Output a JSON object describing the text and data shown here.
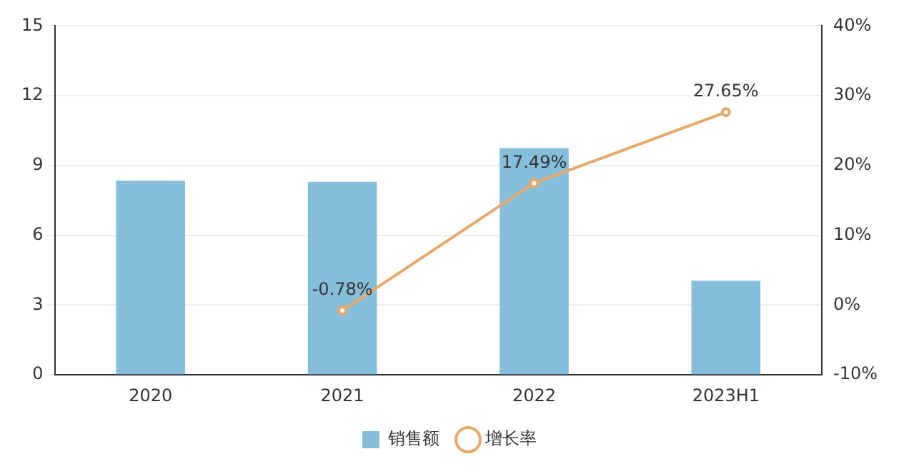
{
  "chart_data": {
    "type": "bar",
    "categories": [
      "2020",
      "2021",
      "2022",
      "2023H1"
    ],
    "series": [
      {
        "name": "销售额",
        "color": "#85bedb",
        "values": [
          8.35,
          8.3,
          9.75,
          4.05
        ]
      },
      {
        "name": "增长率",
        "type": "line",
        "axis": "y2",
        "color": "#e8a869",
        "values": [
          null,
          -0.78,
          17.49,
          27.65
        ],
        "value_labels": [
          null,
          "-0.78%",
          "17.49%",
          "27.65%"
        ]
      }
    ],
    "ylim": [
      0,
      15
    ],
    "yticks": [
      0,
      3,
      6,
      9,
      12,
      15
    ],
    "y2lim": [
      -10,
      40
    ],
    "y2ticks": [
      {
        "value": -10,
        "label": "-10%"
      },
      {
        "value": 0,
        "label": "0%"
      },
      {
        "value": 10,
        "label": "10%"
      },
      {
        "value": 20,
        "label": "20%"
      },
      {
        "value": 30,
        "label": "30%"
      },
      {
        "value": 40,
        "label": "40%"
      }
    ],
    "grid": "y",
    "legend": "bottom",
    "marker": "circle",
    "line_style": "solid"
  }
}
